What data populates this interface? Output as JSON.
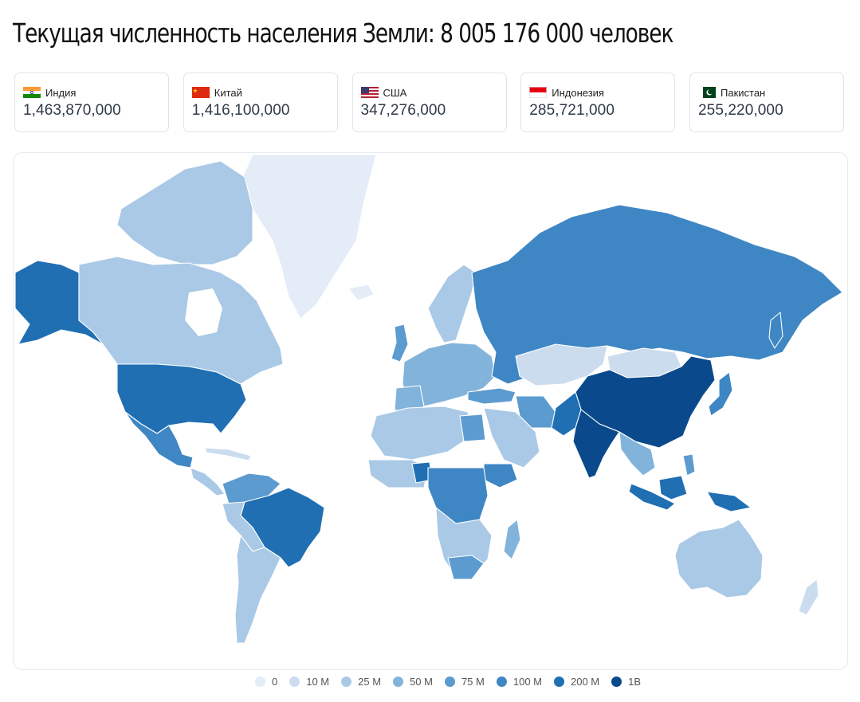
{
  "title": "Текущая численность населения Земли: 8 005 176 000 человек",
  "top_countries": [
    {
      "name": "Индия",
      "population": "1,463,870,000",
      "flag": "india-flag"
    },
    {
      "name": "Китай",
      "population": "1,416,100,000",
      "flag": "china-flag"
    },
    {
      "name": "США",
      "population": "347,276,000",
      "flag": "usa-flag"
    },
    {
      "name": "Индонезия",
      "population": "285,721,000",
      "flag": "indonesia-flag"
    },
    {
      "name": "Пакистан",
      "population": "255,220,000",
      "flag": "pakistan-flag"
    }
  ],
  "legend": [
    {
      "label": "0",
      "color": "#e3ecf7"
    },
    {
      "label": "10 M",
      "color": "#cadcee"
    },
    {
      "label": "25 M",
      "color": "#a9c9e6"
    },
    {
      "label": "50 M",
      "color": "#82b3db"
    },
    {
      "label": "75 M",
      "color": "#5c9bcf"
    },
    {
      "label": "100 M",
      "color": "#3f86c4"
    },
    {
      "label": "200 M",
      "color": "#206fb3"
    },
    {
      "label": "1B",
      "color": "#0a4a8c"
    }
  ],
  "map": {
    "type": "choropleth",
    "measure": "population"
  }
}
